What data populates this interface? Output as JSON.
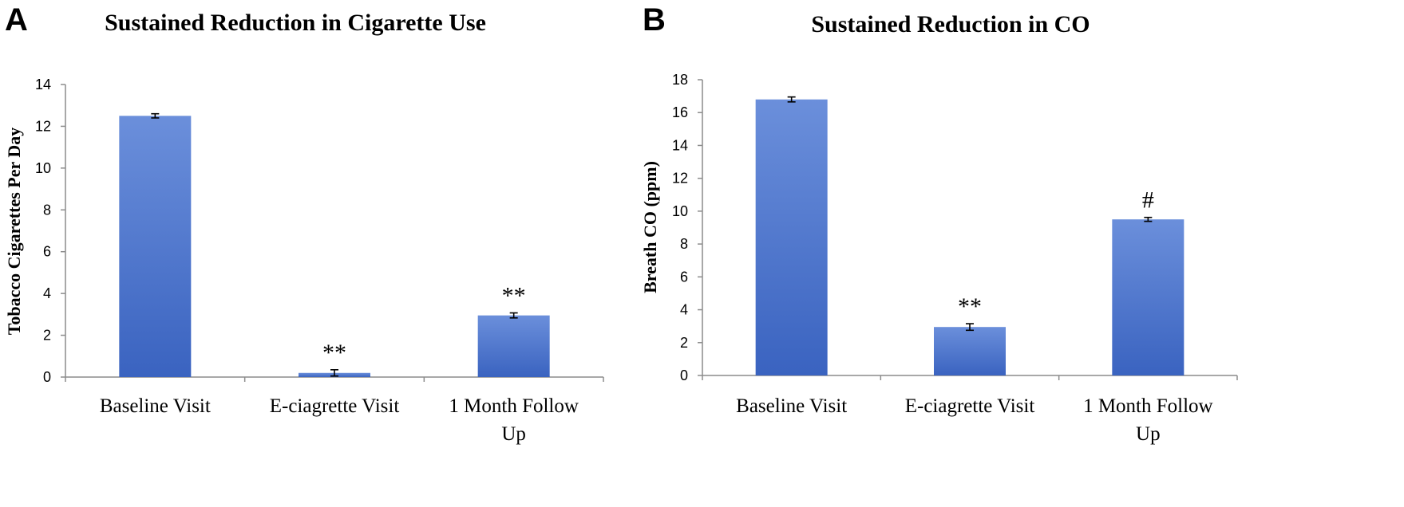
{
  "figure": {
    "bar_color_top": "#6b8fdb",
    "bar_color_bottom": "#3a63c0"
  },
  "chart_data": [
    {
      "panel": "A",
      "type": "bar",
      "title": "Sustained Reduction in Cigarette Use",
      "xlabel": "",
      "ylabel": "Tobacco Cigarettes Per Day",
      "ylim": [
        0,
        14
      ],
      "yticks": [
        0,
        2,
        4,
        6,
        8,
        10,
        12,
        14
      ],
      "categories": [
        "Baseline Visit",
        "E-ciagrette Visit",
        "1 Month Follow Up"
      ],
      "category_lines": [
        [
          "Baseline Visit"
        ],
        [
          "E-ciagrette Visit"
        ],
        [
          "1 Month Follow",
          "Up"
        ]
      ],
      "values": [
        12.5,
        0.2,
        2.95
      ],
      "errors": [
        0.1,
        0.15,
        0.12
      ],
      "annotations": [
        "",
        "**",
        "**"
      ],
      "grid": false,
      "legend": "none"
    },
    {
      "panel": "B",
      "type": "bar",
      "title": "Sustained Reduction in CO",
      "xlabel": "",
      "ylabel": "Breath CO (ppm)",
      "ylim": [
        0,
        18
      ],
      "yticks": [
        0,
        2,
        4,
        6,
        8,
        10,
        12,
        14,
        16,
        18
      ],
      "categories": [
        "Baseline Visit",
        "E-ciagrette Visit",
        "1 Month Follow Up"
      ],
      "category_lines": [
        [
          "Baseline Visit"
        ],
        [
          "E-ciagrette Visit"
        ],
        [
          "1 Month Follow",
          "Up"
        ]
      ],
      "values": [
        16.8,
        2.95,
        9.5
      ],
      "errors": [
        0.15,
        0.2,
        0.12
      ],
      "annotations": [
        "",
        "**",
        "#"
      ],
      "grid": false,
      "legend": "none"
    }
  ]
}
